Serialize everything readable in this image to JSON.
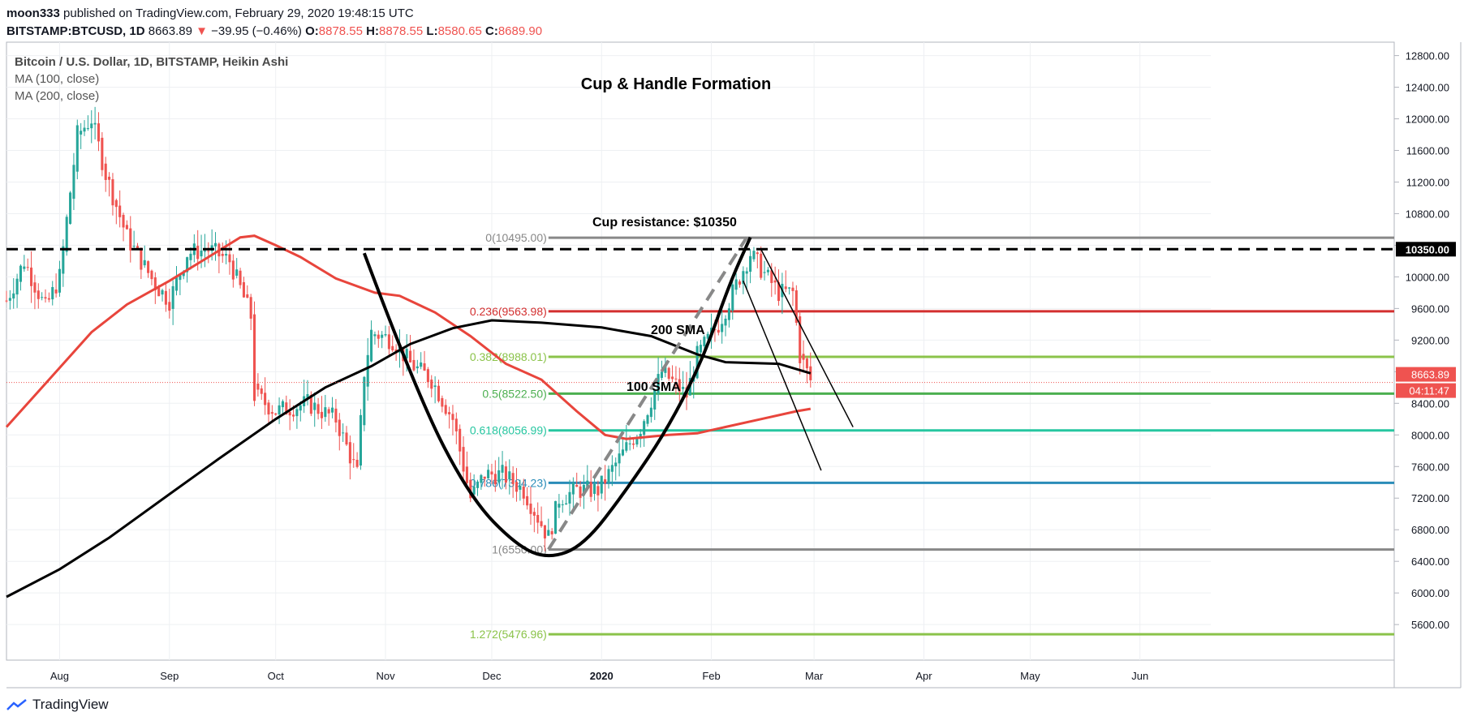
{
  "header": {
    "author": "moon333",
    "published": "published on TradingView.com, February 29, 2020 19:48:15 UTC",
    "symbol": "BITSTAMP:BTCUSD, 1D",
    "last": "8663.89",
    "change": "−39.95 (−0.46%)",
    "o_label": "O:",
    "o_value": "8878.55",
    "h_label": "H:",
    "h_value": "8878.55",
    "l_label": "L:",
    "l_value": "8580.65",
    "c_label": "C:",
    "c_value": "8689.90"
  },
  "legend": {
    "title": "Bitcoin / U.S. Dollar, 1D, BITSTAMP, Heikin Ashi",
    "ma100": "MA (100, close)",
    "ma200": "MA (200, close)"
  },
  "footer": {
    "brand": "TradingView"
  },
  "colors": {
    "up": "#26a69a",
    "down": "#ef5350",
    "ma100": "#e8453c",
    "ma200": "#000000",
    "fib_gray": "#888888",
    "fib_red": "#d32f2f",
    "fib_lime": "#8bc34a",
    "fib_green": "#4caf50",
    "fib_teal": "#26c6a0",
    "fib_blue": "#2a8cb8"
  },
  "chart_data": {
    "type": "candlestick",
    "title": "Cup & Handle Formation",
    "annotations": {
      "cup_resistance": "Cup resistance: $10350",
      "sma200_label": "200 SMA",
      "sma100_label": "100 SMA"
    },
    "y_ticks": [
      5600,
      6000,
      6400,
      6800,
      7200,
      7600,
      8000,
      8400,
      8800,
      9200,
      9600,
      10000,
      10400,
      10800,
      11200,
      11600,
      12000,
      12400,
      12800
    ],
    "ylim": [
      5150,
      12970
    ],
    "x_ticks": [
      {
        "label": "Aug",
        "date": "2019-08-01"
      },
      {
        "label": "Sep",
        "date": "2019-09-01"
      },
      {
        "label": "Oct",
        "date": "2019-10-01"
      },
      {
        "label": "Nov",
        "date": "2019-11-01"
      },
      {
        "label": "Dec",
        "date": "2019-12-01"
      },
      {
        "label": "2020",
        "date": "2020-01-01"
      },
      {
        "label": "Feb",
        "date": "2020-02-01"
      },
      {
        "label": "Mar",
        "date": "2020-03-01"
      },
      {
        "label": "Apr",
        "date": "2020-04-01"
      },
      {
        "label": "May",
        "date": "2020-05-01"
      },
      {
        "label": "Jun",
        "date": "2020-06-01"
      }
    ],
    "xlim": [
      "2019-07-17",
      "2020-06-21"
    ],
    "price_labels": [
      {
        "text": "10350.00",
        "value": 10350,
        "style": "resistance"
      },
      {
        "text": "8663.89",
        "value": 8663.89,
        "style": "last"
      },
      {
        "text": "04:11:47",
        "value": 8663.89,
        "style": "countdown"
      }
    ],
    "resistance": 10350,
    "last_price": 8663.89,
    "fib_levels": [
      {
        "label": "0(10495.00)",
        "value": 10495,
        "color": "#888888"
      },
      {
        "label": "0.236(9563.98)",
        "value": 9563.98,
        "color": "#d32f2f"
      },
      {
        "label": "0.382(8988.01)",
        "value": 8988.01,
        "color": "#8bc34a"
      },
      {
        "label": "0.5(8522.50)",
        "value": 8522.5,
        "color": "#4caf50"
      },
      {
        "label": "0.618(8056.99)",
        "value": 8056.99,
        "color": "#26c6a0"
      },
      {
        "label": "0.786(7394.23)",
        "value": 7394.23,
        "color": "#2a8cb8"
      },
      {
        "label": "1(6550.00)",
        "value": 6550,
        "color": "#888888"
      },
      {
        "label": "1.272(5476.96)",
        "value": 5476.96,
        "color": "#8bc34a"
      }
    ],
    "fib_start": "2019-12-17",
    "close_path": [
      [
        "2019-07-17",
        9700
      ],
      [
        "2019-07-22",
        10200
      ],
      [
        "2019-07-28",
        9600
      ],
      [
        "2019-08-01",
        10000
      ],
      [
        "2019-08-06",
        11800
      ],
      [
        "2019-08-10",
        12000
      ],
      [
        "2019-08-14",
        11300
      ],
      [
        "2019-08-20",
        10500
      ],
      [
        "2019-08-28",
        9900
      ],
      [
        "2019-09-01",
        9700
      ],
      [
        "2019-09-06",
        10300
      ],
      [
        "2019-09-12",
        10350
      ],
      [
        "2019-09-18",
        10200
      ],
      [
        "2019-09-24",
        9500
      ],
      [
        "2019-09-25",
        8500
      ],
      [
        "2019-10-01",
        8300
      ],
      [
        "2019-10-10",
        8400
      ],
      [
        "2019-10-18",
        8200
      ],
      [
        "2019-10-24",
        7500
      ],
      [
        "2019-10-26",
        8800
      ],
      [
        "2019-10-28",
        9300
      ],
      [
        "2019-11-03",
        9200
      ],
      [
        "2019-11-08",
        8900
      ],
      [
        "2019-11-14",
        8700
      ],
      [
        "2019-11-20",
        8200
      ],
      [
        "2019-11-25",
        7200
      ],
      [
        "2019-11-29",
        7500
      ],
      [
        "2019-12-04",
        7500
      ],
      [
        "2019-12-10",
        7300
      ],
      [
        "2019-12-17",
        6700
      ],
      [
        "2019-12-20",
        7200
      ],
      [
        "2019-12-25",
        7300
      ],
      [
        "2019-12-31",
        7300
      ],
      [
        "2020-01-06",
        7700
      ],
      [
        "2020-01-12",
        8100
      ],
      [
        "2020-01-18",
        8800
      ],
      [
        "2020-01-25",
        8500
      ],
      [
        "2020-01-28",
        9000
      ],
      [
        "2020-02-03",
        9400
      ],
      [
        "2020-02-08",
        9900
      ],
      [
        "2020-02-12",
        10300
      ],
      [
        "2020-02-15",
        10100
      ],
      [
        "2020-02-20",
        9800
      ],
      [
        "2020-02-24",
        9800
      ],
      [
        "2020-02-26",
        9000
      ],
      [
        "2020-02-29",
        8690
      ]
    ],
    "series": [
      {
        "name": "MA (100, close)",
        "color": "#e8453c",
        "points": [
          [
            "2019-07-17",
            8100
          ],
          [
            "2019-07-25",
            8500
          ],
          [
            "2019-08-01",
            8850
          ],
          [
            "2019-08-10",
            9300
          ],
          [
            "2019-08-20",
            9650
          ],
          [
            "2019-09-01",
            9950
          ],
          [
            "2019-09-12",
            10250
          ],
          [
            "2019-09-21",
            10500
          ],
          [
            "2019-09-25",
            10520
          ],
          [
            "2019-10-01",
            10400
          ],
          [
            "2019-10-08",
            10250
          ],
          [
            "2019-10-18",
            9980
          ],
          [
            "2019-10-29",
            9800
          ],
          [
            "2019-11-05",
            9760
          ],
          [
            "2019-11-15",
            9550
          ],
          [
            "2019-11-25",
            9250
          ],
          [
            "2019-12-05",
            8900
          ],
          [
            "2019-12-15",
            8700
          ],
          [
            "2019-12-25",
            8300
          ],
          [
            "2020-01-02",
            8000
          ],
          [
            "2020-01-08",
            7950
          ],
          [
            "2020-01-20",
            8000
          ],
          [
            "2020-01-28",
            8020
          ],
          [
            "2020-02-05",
            8100
          ],
          [
            "2020-02-15",
            8200
          ],
          [
            "2020-02-25",
            8300
          ],
          [
            "2020-02-29",
            8330
          ]
        ]
      },
      {
        "name": "MA (200, close)",
        "color": "#000000",
        "points": [
          [
            "2019-07-17",
            5950
          ],
          [
            "2019-08-01",
            6300
          ],
          [
            "2019-08-15",
            6700
          ],
          [
            "2019-09-01",
            7250
          ],
          [
            "2019-09-15",
            7700
          ],
          [
            "2019-10-01",
            8200
          ],
          [
            "2019-10-15",
            8600
          ],
          [
            "2019-10-28",
            8870
          ],
          [
            "2019-11-08",
            9150
          ],
          [
            "2019-11-20",
            9350
          ],
          [
            "2019-12-01",
            9450
          ],
          [
            "2019-12-15",
            9420
          ],
          [
            "2020-01-01",
            9360
          ],
          [
            "2020-01-15",
            9250
          ],
          [
            "2020-01-28",
            9020
          ],
          [
            "2020-02-05",
            8920
          ],
          [
            "2020-02-20",
            8900
          ],
          [
            "2020-02-29",
            8780
          ]
        ]
      }
    ],
    "drawings": {
      "resistance_line": {
        "value": 10350
      },
      "cup_curve": [
        [
          "2019-10-26",
          10300
        ],
        [
          "2019-11-10",
          8500
        ],
        [
          "2019-11-25",
          7200
        ],
        [
          "2019-12-08",
          6600
        ],
        [
          "2019-12-17",
          6430
        ],
        [
          "2019-12-27",
          6600
        ],
        [
          "2020-01-08",
          7300
        ],
        [
          "2020-01-20",
          8100
        ],
        [
          "2020-01-30",
          9000
        ],
        [
          "2020-02-06",
          9900
        ],
        [
          "2020-02-12",
          10500
        ]
      ],
      "dashed_trend": [
        [
          "2019-12-17",
          6550
        ],
        [
          "2020-02-11",
          10500
        ]
      ],
      "handle_upper": [
        [
          "2020-02-15",
          10350
        ],
        [
          "2020-03-12",
          8100
        ]
      ],
      "handle_lower": [
        [
          "2020-02-10",
          9950
        ],
        [
          "2020-03-03",
          7550
        ]
      ]
    }
  }
}
